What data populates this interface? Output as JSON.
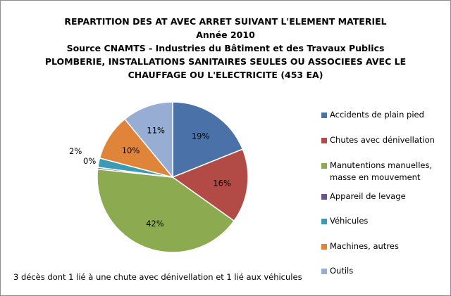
{
  "title_lines": [
    "REPARTITION DES AT AVEC ARRET SUIVANT L'ELEMENT MATERIEL",
    "Année 2010",
    "Source CNAMTS - Industries du Bâtiment et des Travaux Publics",
    "PLOMBERIE, INSTALLATIONS SANITAIRES SEULES OU ASSOCIEES AVEC LE",
    "CHAUFFAGE OU L'ELECTRICITE (453 EA)"
  ],
  "footnote": "3 décès dont 1 lié à une chute avec dénivellation et 1 lié aux véhicules",
  "chart_data": {
    "type": "pie",
    "title": "REPARTITION DES AT AVEC ARRET SUIVANT L'ELEMENT MATERIEL",
    "legend_position": "right",
    "slices": [
      {
        "name": "Accidents de plain pied",
        "value": 19,
        "label": "19%",
        "color": "#4a72a8"
      },
      {
        "name": "Chutes avec dénivellation",
        "value": 16,
        "label": "16%",
        "color": "#b24a45"
      },
      {
        "name": "Manutentions manuelles, masse en mouvement",
        "value": 42,
        "label": "42%",
        "color": "#8caa4f"
      },
      {
        "name": "Appareil de levage",
        "value": 0.4,
        "label": "0%",
        "color": "#6d5290"
      },
      {
        "name": "Véhicules",
        "value": 2,
        "label": "2%",
        "color": "#3a9bb4"
      },
      {
        "name": "Machines, autres",
        "value": 10,
        "label": "10%",
        "color": "#e0843a"
      },
      {
        "name": "Outils",
        "value": 11,
        "label": "11%",
        "color": "#98add4"
      }
    ],
    "legend_labels": [
      "Accidents de plain pied",
      "Chutes avec dénivellation",
      "Manutentions manuelles,\nmasse en mouvement",
      "Appareil de levage",
      "Véhicules",
      "Machines, autres",
      "Outils"
    ]
  }
}
